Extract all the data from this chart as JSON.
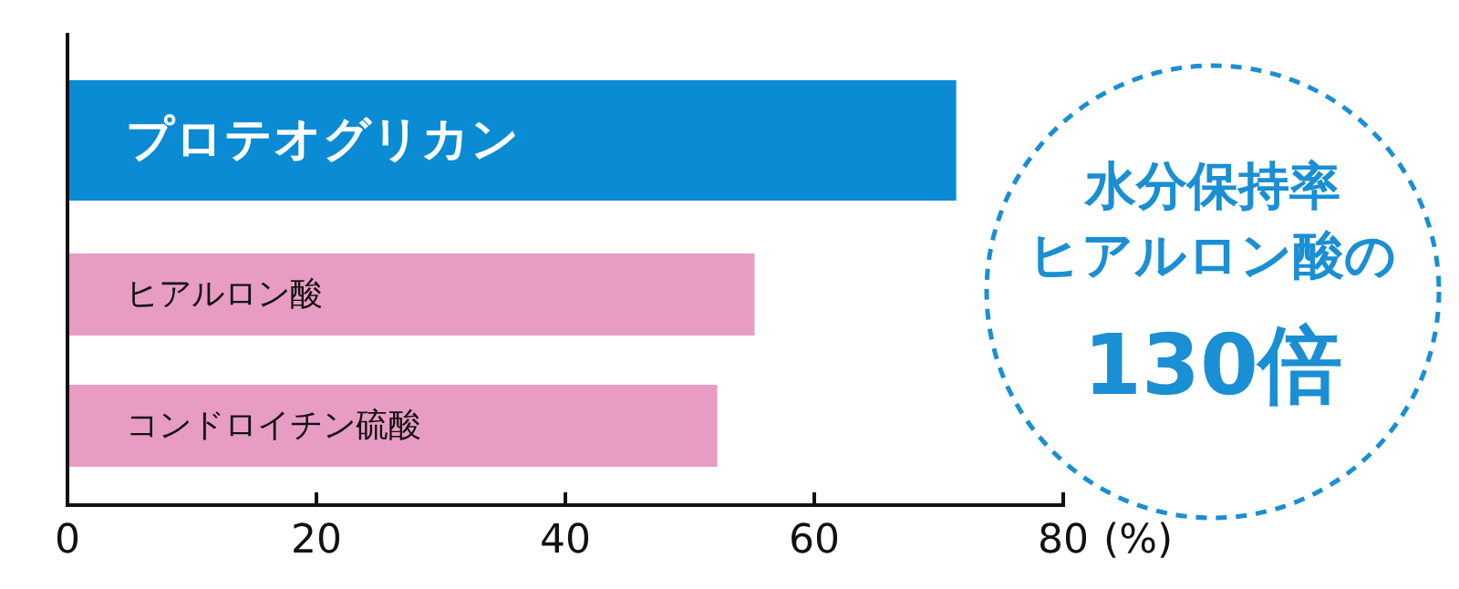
{
  "chart_data": {
    "type": "bar",
    "orientation": "horizontal",
    "categories": [
      "プロテオグリカン",
      "ヒアルロン酸",
      "コンドロイチン硫酸"
    ],
    "values": [
      71.4,
      55.2,
      52.2
    ],
    "colors": [
      "#0a8bd3",
      "#e89cc4",
      "#e89cc4"
    ],
    "xlabel": "(%)",
    "xlim": [
      0,
      80
    ],
    "xticks": [
      0,
      20,
      40,
      60,
      80
    ],
    "annotations": [
      "水分保持率",
      "ヒアルロン酸の",
      "130倍"
    ]
  }
}
